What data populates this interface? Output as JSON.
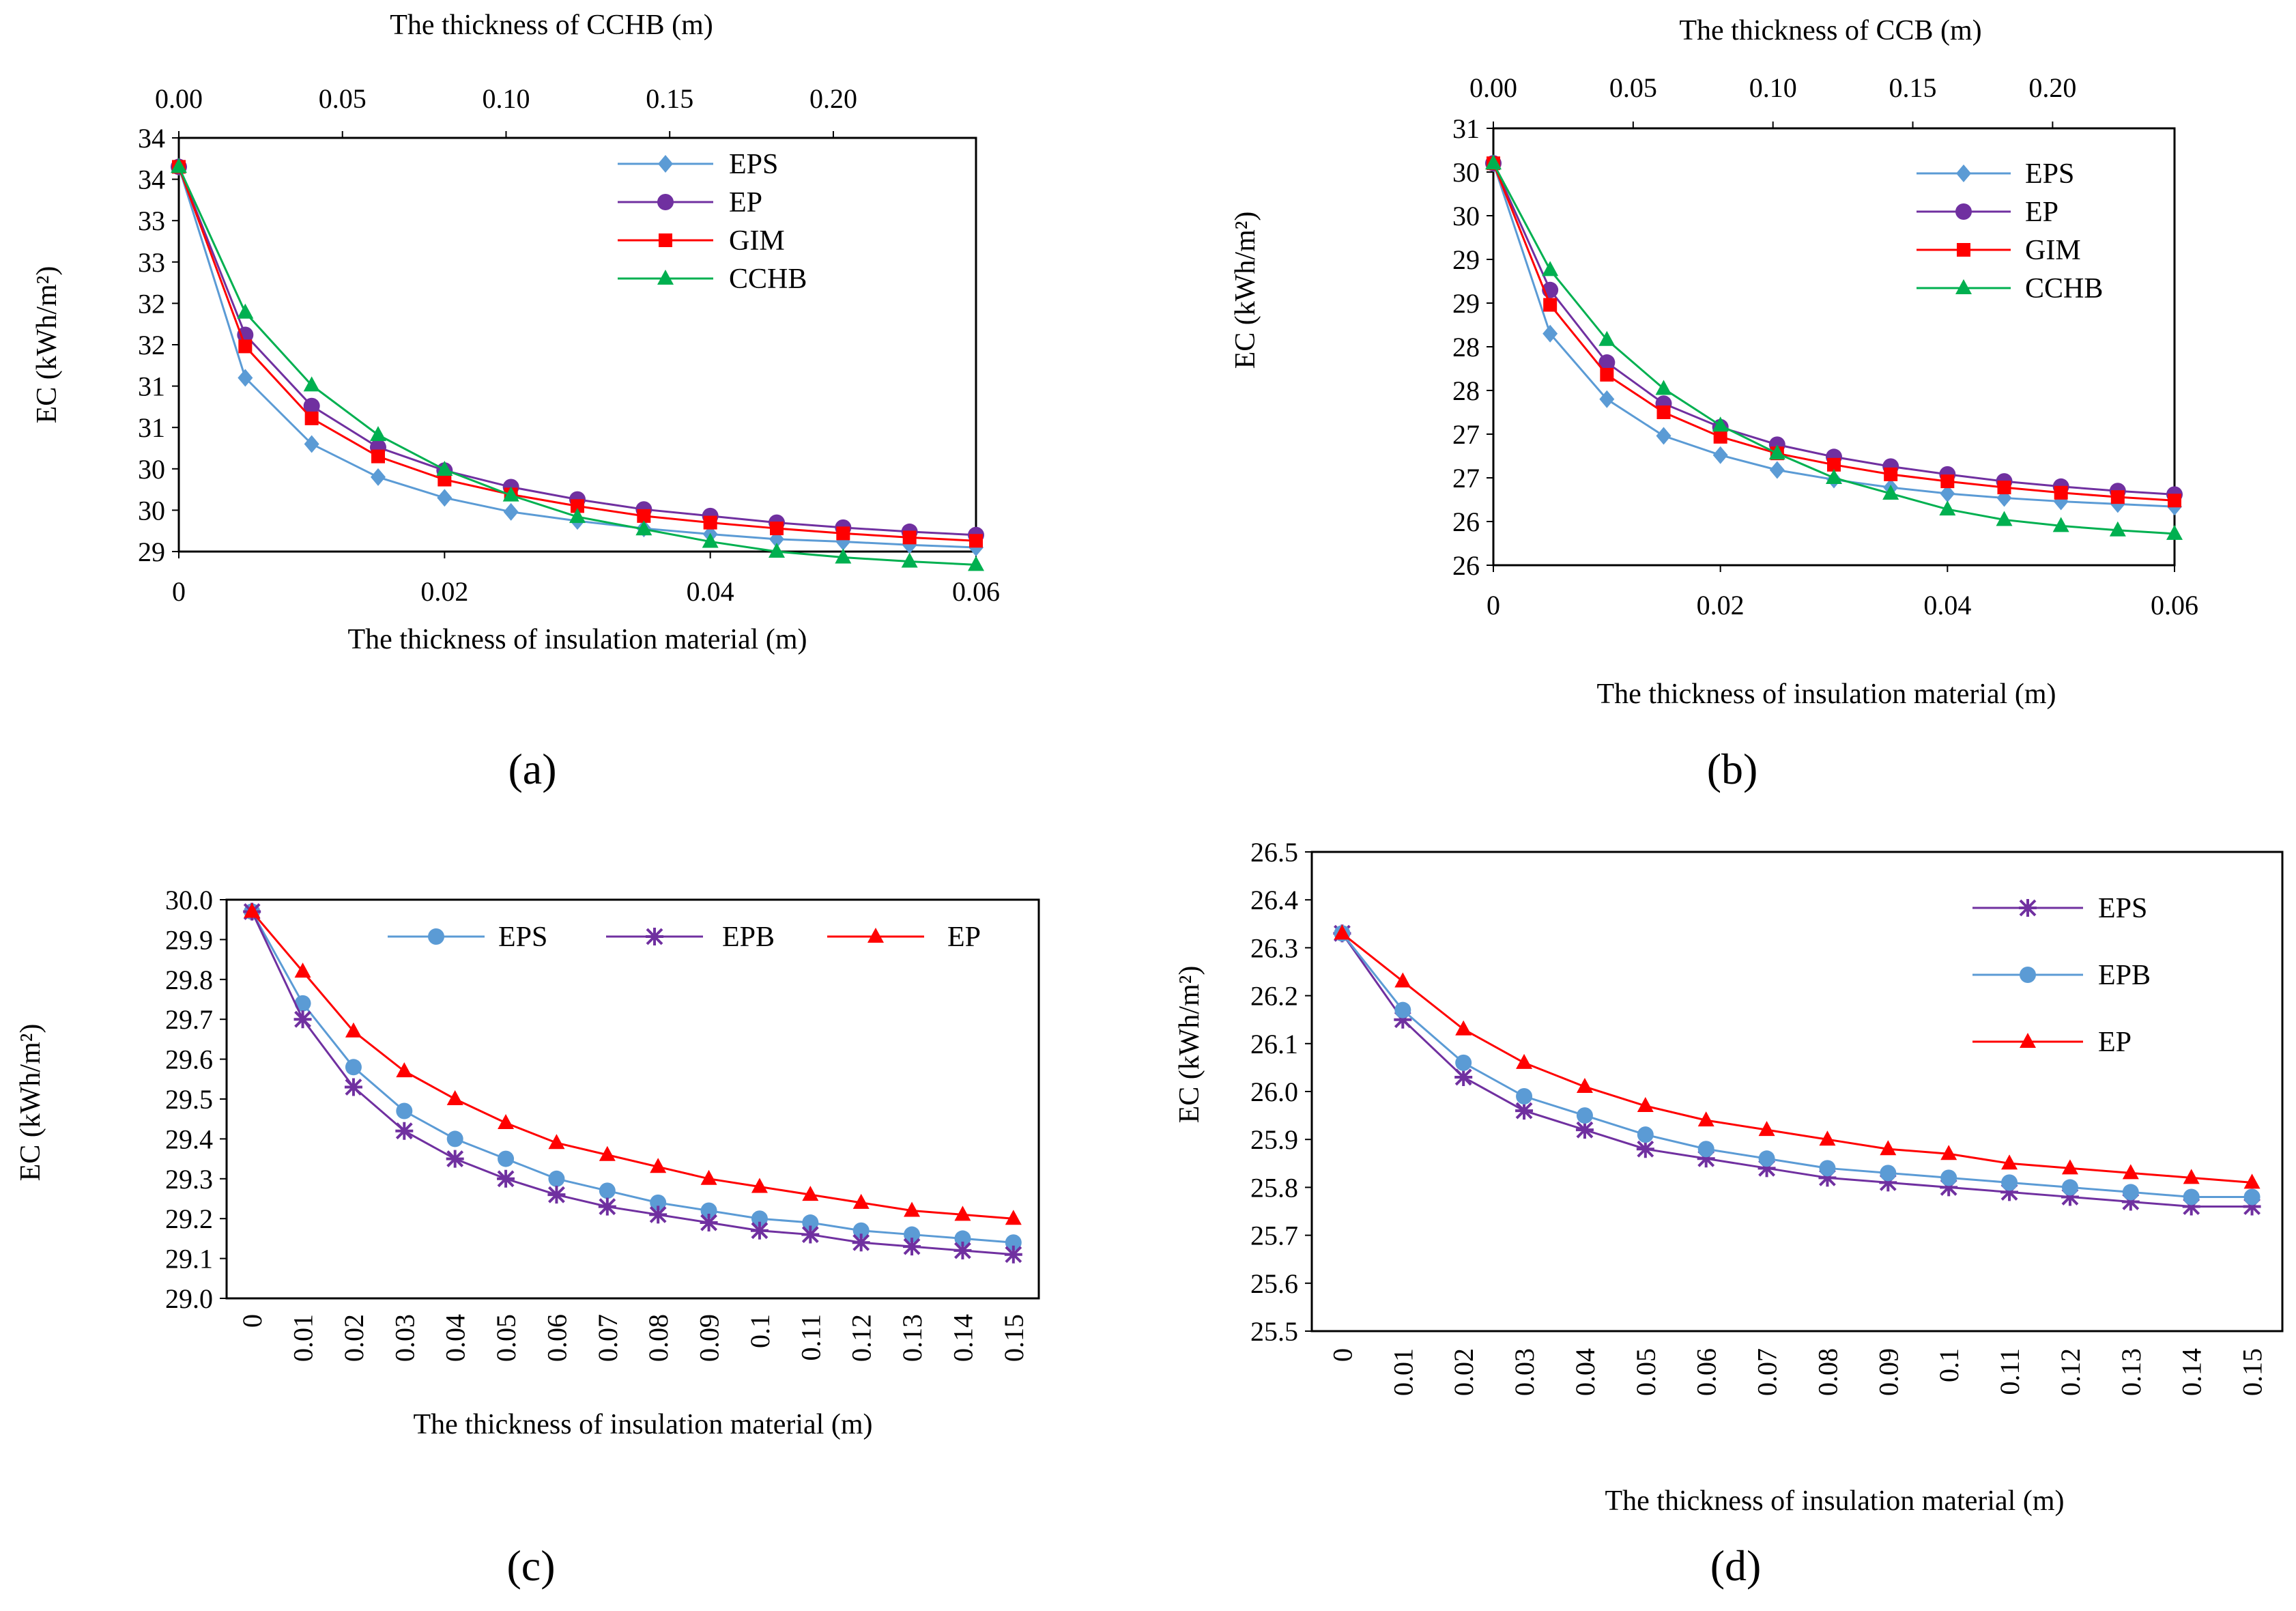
{
  "chart_data": [
    {
      "panel": "a",
      "panel_label": "(a)",
      "type": "line",
      "xlabel": "The thickness of insulation  material  (m)",
      "x2label": "The thickness of CCHB  (m)",
      "ylabel": "EC  (kWh/m²)",
      "xlim": [
        0,
        0.06
      ],
      "x2lim": [
        0,
        0.2436
      ],
      "ylim": [
        29,
        34
      ],
      "x_ticks": [
        "0",
        "0.02",
        "0.04",
        "0.06"
      ],
      "x2_ticks": [
        "0.00",
        "0.05",
        "0.10",
        "0.15",
        "0.20"
      ],
      "y_ticks": [
        "29",
        "30",
        "30",
        "31",
        "31",
        "32",
        "32",
        "33",
        "33",
        "34",
        "34"
      ],
      "legend_position": "top-right",
      "x": [
        0,
        0.005,
        0.01,
        0.015,
        0.02,
        0.025,
        0.03,
        0.035,
        0.04,
        0.045,
        0.05,
        0.055,
        0.06
      ],
      "series": [
        {
          "name": "EPS",
          "color": "#5b9bd5",
          "marker": "diamond",
          "values": [
            33.65,
            31.1,
            30.3,
            29.9,
            29.65,
            29.48,
            29.37,
            29.28,
            29.21,
            29.15,
            29.12,
            29.08,
            29.05
          ]
        },
        {
          "name": "EP",
          "color": "#7030a0",
          "marker": "circle",
          "values": [
            33.65,
            31.62,
            30.76,
            30.26,
            29.98,
            29.78,
            29.63,
            29.51,
            29.43,
            29.35,
            29.29,
            29.24,
            29.2
          ]
        },
        {
          "name": "GIM",
          "color": "#ff0000",
          "marker": "square",
          "values": [
            33.65,
            31.48,
            30.61,
            30.15,
            29.87,
            29.69,
            29.55,
            29.43,
            29.35,
            29.28,
            29.22,
            29.17,
            29.13
          ]
        },
        {
          "name": "CCHB",
          "color": "#00b050",
          "marker": "triangle",
          "values": [
            33.65,
            31.89,
            31.01,
            30.41,
            29.99,
            29.68,
            29.42,
            29.27,
            29.12,
            29.0,
            28.93,
            28.88,
            28.84
          ]
        }
      ]
    },
    {
      "panel": "b",
      "panel_label": "(b)",
      "type": "line",
      "xlabel": "The thickness of insulation  material    (m)",
      "x2label": "The thickness of CCB  (m)",
      "ylabel": "EC  (kWh/m²)",
      "xlim": [
        0,
        0.06
      ],
      "x2lim": [
        0,
        0.2436
      ],
      "ylim": [
        26,
        31
      ],
      "x_ticks": [
        "0",
        "0.02",
        "0.04",
        "0.06"
      ],
      "x2_ticks": [
        "0.00",
        "0.05",
        "0.10",
        "0.15",
        "0.20"
      ],
      "y_ticks": [
        "26",
        "26",
        "27",
        "27",
        "28",
        "28",
        "29",
        "29",
        "30",
        "30",
        "31"
      ],
      "legend_position": "top-right",
      "x": [
        0,
        0.005,
        0.01,
        0.015,
        0.02,
        0.025,
        0.03,
        0.035,
        0.04,
        0.045,
        0.05,
        0.055,
        0.06
      ],
      "series": [
        {
          "name": "EPS",
          "color": "#5b9bd5",
          "marker": "diamond",
          "values": [
            30.6,
            28.65,
            27.9,
            27.48,
            27.26,
            27.09,
            26.98,
            26.89,
            26.82,
            26.77,
            26.73,
            26.7,
            26.67
          ]
        },
        {
          "name": "EP",
          "color": "#7030a0",
          "marker": "circle",
          "values": [
            30.6,
            29.15,
            28.32,
            27.85,
            27.58,
            27.38,
            27.24,
            27.13,
            27.04,
            26.96,
            26.9,
            26.85,
            26.81
          ]
        },
        {
          "name": "GIM",
          "color": "#ff0000",
          "marker": "square",
          "values": [
            30.6,
            28.98,
            28.18,
            27.75,
            27.47,
            27.28,
            27.15,
            27.04,
            26.96,
            26.89,
            26.83,
            26.78,
            26.74
          ]
        },
        {
          "name": "CCHB",
          "color": "#00b050",
          "marker": "triangle",
          "values": [
            30.6,
            29.38,
            28.58,
            28.02,
            27.6,
            27.28,
            27.0,
            26.82,
            26.64,
            26.52,
            26.45,
            26.4,
            26.36
          ]
        }
      ]
    },
    {
      "panel": "c",
      "panel_label": "(c)",
      "type": "line",
      "xlabel": "The thickness of insulation  material    (m)",
      "ylabel": "EC  (kWh/m²)",
      "ylim": [
        29.0,
        30.0
      ],
      "y_ticks": [
        "29.0",
        "29.1",
        "29.2",
        "29.3",
        "29.4",
        "29.5",
        "29.6",
        "29.7",
        "29.8",
        "29.9",
        "30.0"
      ],
      "legend_position": "top-right",
      "categories": [
        "0",
        "0.01",
        "0.02",
        "0.03",
        "0.04",
        "0.05",
        "0.06",
        "0.07",
        "0.08",
        "0.09",
        "0.1",
        "0.11",
        "0.12",
        "0.13",
        "0.14",
        "0.15"
      ],
      "series": [
        {
          "name": "EPS",
          "color": "#5b9bd5",
          "marker": "circle",
          "values": [
            29.97,
            29.74,
            29.58,
            29.47,
            29.4,
            29.35,
            29.3,
            29.27,
            29.24,
            29.22,
            29.2,
            29.19,
            29.17,
            29.16,
            29.15,
            29.14
          ]
        },
        {
          "name": "EPB",
          "color": "#7030a0",
          "marker": "star",
          "values": [
            29.97,
            29.7,
            29.53,
            29.42,
            29.35,
            29.3,
            29.26,
            29.23,
            29.21,
            29.19,
            29.17,
            29.16,
            29.14,
            29.13,
            29.12,
            29.11
          ]
        },
        {
          "name": "EP",
          "color": "#ff0000",
          "marker": "triangle",
          "values": [
            29.97,
            29.82,
            29.67,
            29.57,
            29.5,
            29.44,
            29.39,
            29.36,
            29.33,
            29.3,
            29.28,
            29.26,
            29.24,
            29.22,
            29.21,
            29.2
          ]
        }
      ]
    },
    {
      "panel": "d",
      "panel_label": "(d)",
      "type": "line",
      "xlabel": "The thickness of insulation  material    (m)",
      "ylabel": "EC  (kWh/m²)",
      "ylim": [
        25.5,
        26.5
      ],
      "y_ticks": [
        "25.5",
        "25.6",
        "25.7",
        "25.8",
        "25.9",
        "26.0",
        "26.1",
        "26.2",
        "26.3",
        "26.4",
        "26.5"
      ],
      "legend_position": "top-right",
      "categories": [
        "0",
        "0.01",
        "0.02",
        "0.03",
        "0.04",
        "0.05",
        "0.06",
        "0.07",
        "0.08",
        "0.09",
        "0.1",
        "0.11",
        "0.12",
        "0.13",
        "0.14",
        "0.15"
      ],
      "series": [
        {
          "name": "EPS",
          "color": "#7030a0",
          "marker": "star",
          "values": [
            26.33,
            26.15,
            26.03,
            25.96,
            25.92,
            25.88,
            25.86,
            25.84,
            25.82,
            25.81,
            25.8,
            25.79,
            25.78,
            25.77,
            25.76,
            25.76
          ]
        },
        {
          "name": "EPB",
          "color": "#5b9bd5",
          "marker": "circle",
          "values": [
            26.33,
            26.17,
            26.06,
            25.99,
            25.95,
            25.91,
            25.88,
            25.86,
            25.84,
            25.83,
            25.82,
            25.81,
            25.8,
            25.79,
            25.78,
            25.78
          ]
        },
        {
          "name": "EP",
          "color": "#ff0000",
          "marker": "triangle",
          "values": [
            26.33,
            26.23,
            26.13,
            26.06,
            26.01,
            25.97,
            25.94,
            25.92,
            25.9,
            25.88,
            25.87,
            25.85,
            25.84,
            25.83,
            25.82,
            25.81
          ]
        }
      ]
    }
  ]
}
